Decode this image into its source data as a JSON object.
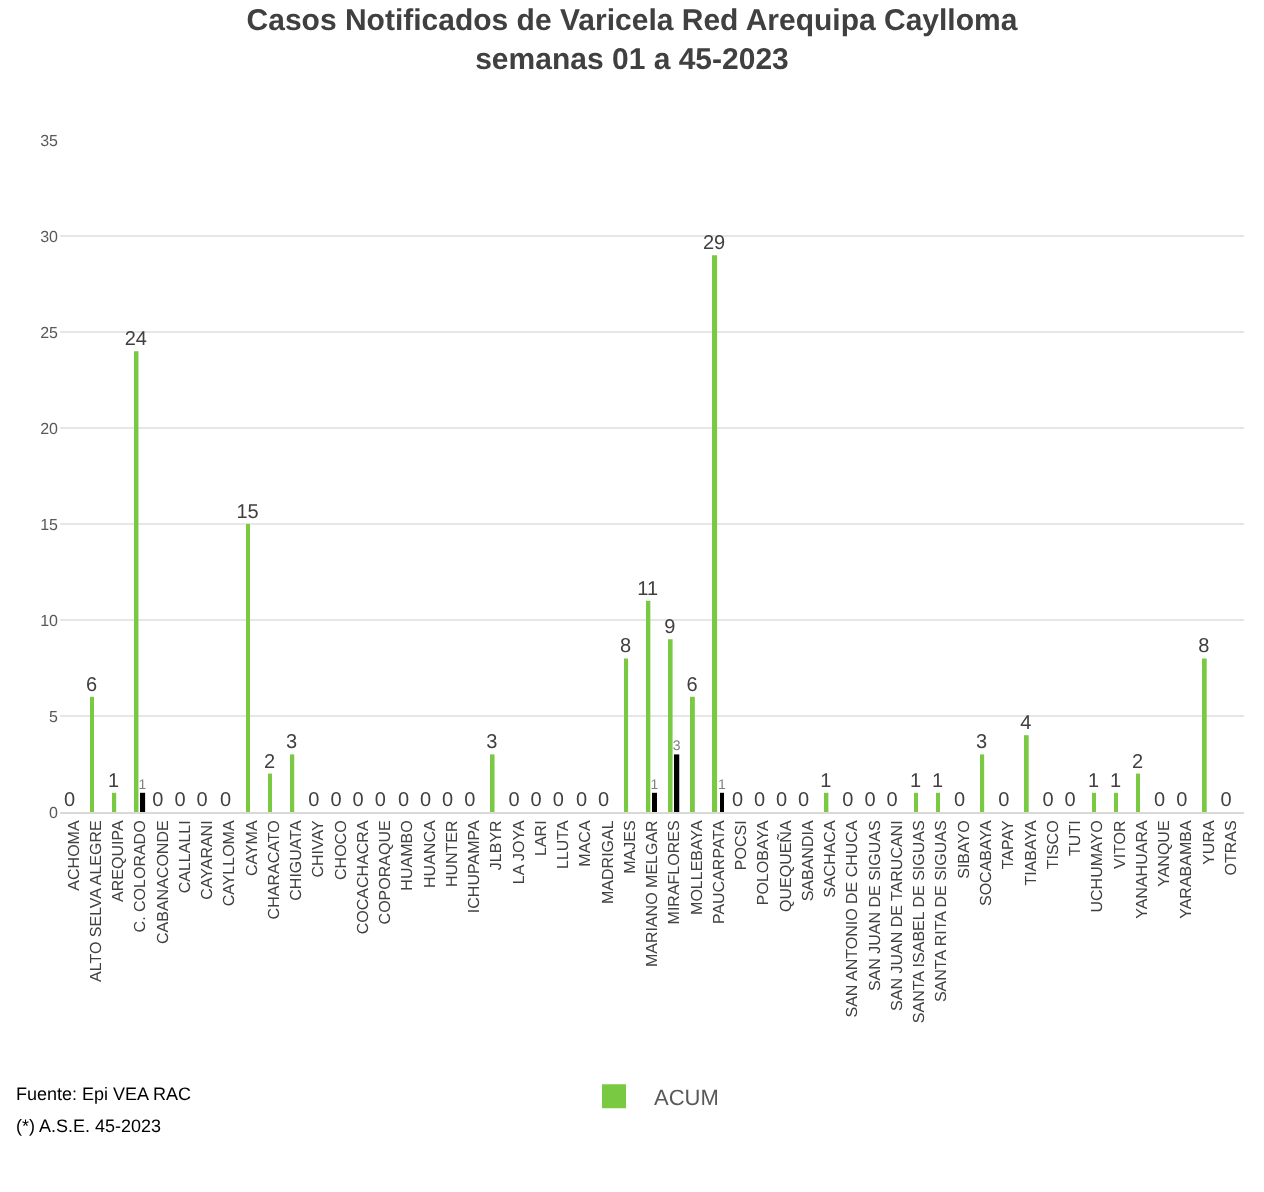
{
  "chart_data": {
    "type": "bar",
    "title": "Casos Notificados de Varicela Red Arequipa Caylloma",
    "subtitle": "semanas 01 a 45-2023",
    "categories": [
      "ACHOMA",
      "ALTO SELVA ALEGRE",
      "AREQUIPA",
      "C. COLORADO",
      "CABANACONDE",
      "CALLALLI",
      "CAYARANI",
      "CAYLLOMA",
      "CAYMA",
      "CHARACATO",
      "CHIGUATA",
      "CHIVAY",
      "CHOCO",
      "COCACHACRA",
      "COPORAQUE",
      "HUAMBO",
      "HUANCA",
      "HUNTER",
      "ICHUPAMPA",
      "JLBYR",
      "LA JOYA",
      "LARI",
      "LLUTA",
      "MACA",
      "MADRIGAL",
      "MAJES",
      "MARIANO MELGAR",
      "MIRAFLORES",
      "MOLLEBAYA",
      "PAUCARPATA",
      "POCSI",
      "POLOBAYA",
      "QUEQUEÑA",
      "SABANDIA",
      "SACHACA",
      "SAN ANTONIO DE CHUCA",
      "SAN JUAN DE SIGUAS",
      "SAN JUAN DE TARUCANI",
      "SANTA ISABEL DE SIGUAS",
      "SANTA RITA DE SIGUAS",
      "SIBAYO",
      "SOCABAYA",
      "TAPAY",
      "TIABAYA",
      "TISCO",
      "TUTI",
      "UCHUMAYO",
      "VITOR",
      "YANAHUARA",
      "YANQUE",
      "YARABAMBA",
      "YURA",
      "OTRAS"
    ],
    "series": [
      {
        "name": "ACUM",
        "color": "#7ac943",
        "values": [
          0,
          6,
          1,
          24,
          0,
          0,
          0,
          0,
          15,
          2,
          3,
          0,
          0,
          0,
          0,
          0,
          0,
          0,
          0,
          3,
          0,
          0,
          0,
          0,
          0,
          8,
          11,
          9,
          6,
          29,
          0,
          0,
          0,
          0,
          1,
          0,
          0,
          0,
          1,
          1,
          0,
          3,
          0,
          4,
          0,
          0,
          1,
          1,
          2,
          0,
          0,
          8,
          0
        ],
        "value_labels": [
          "0",
          "6",
          "1",
          "24",
          "0",
          "0",
          "0",
          "0",
          "15",
          "2",
          "3",
          "0",
          "0",
          "0",
          "0",
          "0",
          "0",
          "0",
          "0",
          "3",
          "0",
          "0",
          "0",
          "0",
          "0",
          "8",
          "11",
          "9",
          "6",
          "29",
          "0",
          "0",
          "0",
          "0",
          "1",
          "0",
          "0",
          "0",
          "1",
          "1",
          "0",
          "3",
          "0",
          "4",
          "0",
          "0",
          "1",
          "1",
          "2",
          "0",
          "0",
          "8",
          "0"
        ]
      },
      {
        "color": "#000000",
        "values": [
          0,
          0,
          0,
          1,
          0,
          0,
          0,
          0,
          0,
          0,
          0,
          0,
          0,
          0,
          0,
          0,
          0,
          0,
          0,
          0,
          0,
          0,
          0,
          0,
          0,
          0,
          1,
          3,
          0,
          1,
          0,
          0,
          0,
          0,
          0,
          0,
          0,
          0,
          0,
          0,
          0,
          0,
          0,
          0,
          0,
          0,
          0,
          0,
          0,
          0,
          0,
          0,
          0
        ],
        "value_labels": [
          null,
          null,
          null,
          "1",
          null,
          null,
          null,
          null,
          null,
          null,
          null,
          null,
          null,
          null,
          null,
          null,
          null,
          null,
          null,
          null,
          null,
          null,
          null,
          null,
          null,
          null,
          "1",
          "3",
          null,
          "1",
          null,
          null,
          null,
          null,
          null,
          null,
          null,
          null,
          null,
          null,
          null,
          null,
          null,
          null,
          null,
          null,
          null,
          null,
          null,
          null,
          null,
          null,
          null
        ]
      }
    ],
    "ylim": [
      0,
      35
    ],
    "yticks": [
      0,
      5,
      10,
      15,
      20,
      25,
      30,
      35
    ],
    "grid": "y",
    "legend": "bottom",
    "annotations": [
      "Fuente: Epi VEA RAC",
      "(*) A.S.E. 45-2023"
    ]
  }
}
